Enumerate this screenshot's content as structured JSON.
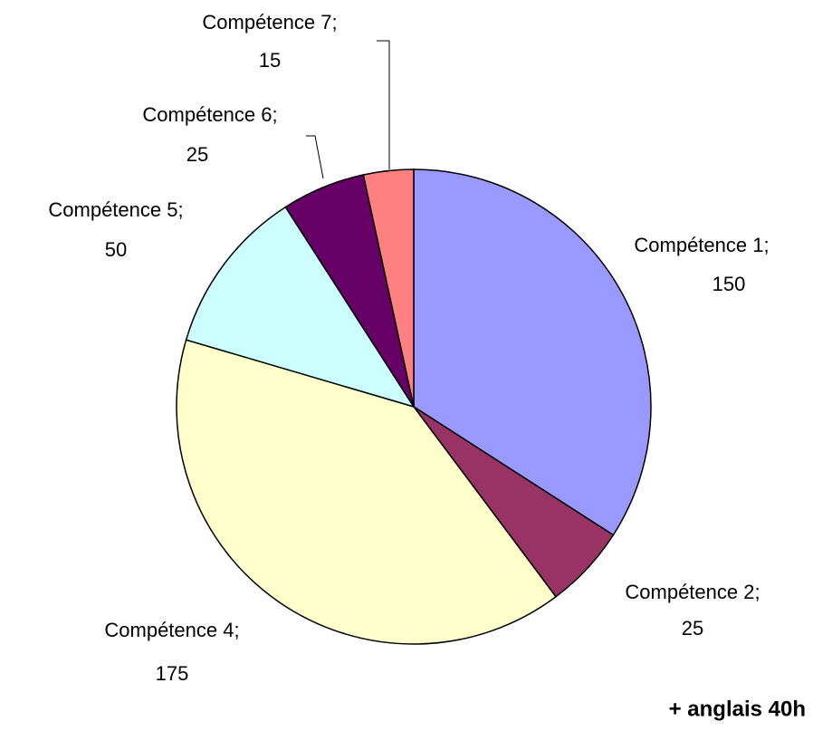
{
  "chart_data": {
    "type": "pie",
    "categories": [
      "Compétence 1;",
      "Compétence 2;",
      "Compétence 4;",
      "Compétence 5;",
      "Compétence 6;",
      "Compétence 7;"
    ],
    "values": [
      150,
      25,
      175,
      50,
      25,
      15
    ],
    "colors": [
      "#9999ff",
      "#993366",
      "#ffffcc",
      "#ccffff",
      "#660066",
      "#ff8080"
    ],
    "annotation": "+ anglais 40h"
  }
}
